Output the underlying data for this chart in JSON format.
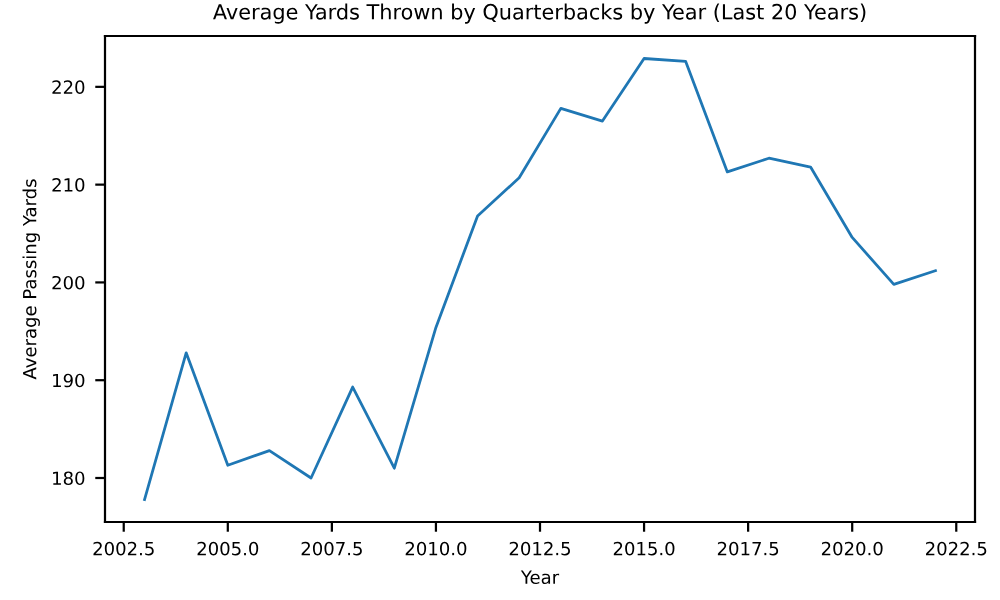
{
  "chart_data": {
    "type": "line",
    "title": "Average Yards Thrown by Quarterbacks by Year (Last 20 Years)",
    "xlabel": "Year",
    "ylabel": "Average Passing Yards",
    "x": [
      2003,
      2004,
      2005,
      2006,
      2007,
      2008,
      2009,
      2010,
      2011,
      2012,
      2013,
      2014,
      2015,
      2016,
      2017,
      2018,
      2019,
      2020,
      2021,
      2022
    ],
    "series": [
      {
        "color": "#1f77b4",
        "values": [
          177.8,
          192.8,
          181.3,
          182.8,
          180.0,
          189.3,
          181.0,
          195.4,
          206.8,
          210.7,
          217.8,
          216.5,
          222.9,
          222.6,
          211.3,
          212.7,
          211.8,
          204.6,
          199.8,
          201.2
        ]
      }
    ],
    "xlim": [
      2002.05,
      2022.95
    ],
    "ylim": [
      175.5,
      225.2
    ],
    "xticks": [
      {
        "value": 2002.5,
        "label": "2002.5"
      },
      {
        "value": 2005,
        "label": "2005.0"
      },
      {
        "value": 2007.5,
        "label": "2007.5"
      },
      {
        "value": 2010,
        "label": "2010.0"
      },
      {
        "value": 2012.5,
        "label": "2012.5"
      },
      {
        "value": 2015,
        "label": "2015.0"
      },
      {
        "value": 2017.5,
        "label": "2017.5"
      },
      {
        "value": 2020,
        "label": "2020.0"
      },
      {
        "value": 2022.5,
        "label": "2022.5"
      }
    ],
    "yticks": [
      180,
      190,
      200,
      210,
      220
    ]
  }
}
